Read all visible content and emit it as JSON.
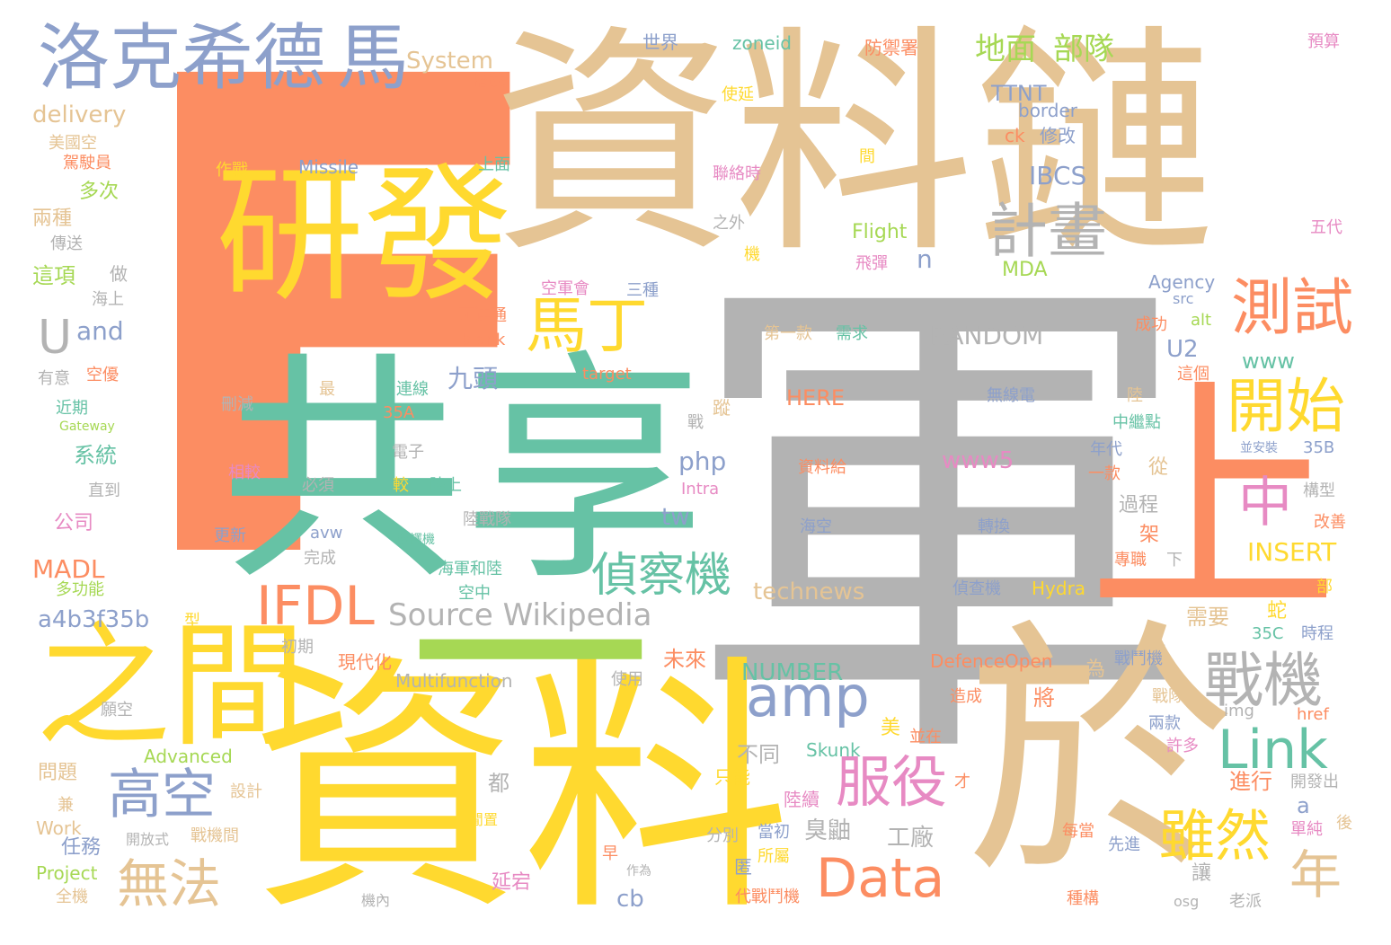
{
  "palette": {
    "orange": "#fc8d62",
    "yellow": "#ffd92f",
    "tan": "#e5c494",
    "gray": "#b3b3b3",
    "teal": "#66c2a5",
    "blue": "#8da0cb",
    "pink": "#e78ac3",
    "green": "#a6d854"
  },
  "words": [
    {
      "text": "F",
      "color": "#fc8d62"
    },
    {
      "text": "資料鏈",
      "color": "#e5c494"
    },
    {
      "text": "軍",
      "color": "#b3b3b3"
    },
    {
      "text": "共享",
      "color": "#66c2a5"
    },
    {
      "text": "資料",
      "color": "#ffd92f"
    },
    {
      "text": "於",
      "color": "#e5c494"
    },
    {
      "text": "研發",
      "color": "#ffd92f"
    },
    {
      "text": "之間",
      "color": "#ffd92f"
    },
    {
      "text": "上",
      "color": "#fc8d62"
    },
    {
      "text": "洛克希德",
      "color": "#8da0cb"
    },
    {
      "text": "馬",
      "color": "#8da0cb"
    },
    {
      "text": "一",
      "color": "#a6d854"
    },
    {
      "text": "測試",
      "color": "#fc8d62"
    },
    {
      "text": "計畫",
      "color": "#b3b3b3"
    },
    {
      "text": "開始",
      "color": "#ffd92f"
    },
    {
      "text": "馬丁",
      "color": "#ffd92f"
    },
    {
      "text": "中",
      "color": "#e78ac3"
    },
    {
      "text": "戰機",
      "color": "#b3b3b3"
    },
    {
      "text": "IFDL",
      "color": "#fc8d62"
    },
    {
      "text": "amp",
      "color": "#8da0cb"
    },
    {
      "text": "Link",
      "color": "#66c2a5"
    },
    {
      "text": "服役",
      "color": "#e78ac3"
    },
    {
      "text": "Data",
      "color": "#fc8d62"
    },
    {
      "text": "雖然",
      "color": "#ffd92f"
    },
    {
      "text": "偵察機",
      "color": "#66c2a5"
    },
    {
      "text": "高空",
      "color": "#8da0cb"
    },
    {
      "text": "無法",
      "color": "#e5c494"
    },
    {
      "text": "年",
      "color": "#e5c494"
    },
    {
      "text": "地面",
      "color": "#a6d854"
    },
    {
      "text": "部隊",
      "color": "#a6d854"
    },
    {
      "text": "U",
      "color": "#b3b3b3"
    },
    {
      "text": "Source Wikipedia",
      "color": "#b3b3b3"
    },
    {
      "text": "System",
      "color": "#e5c494"
    },
    {
      "text": "delivery",
      "color": "#e5c494"
    },
    {
      "text": "and",
      "color": "#8da0cb"
    },
    {
      "text": "IBCS",
      "color": "#8da0cb"
    },
    {
      "text": "TTNT",
      "color": "#8da0cb"
    },
    {
      "text": "RANDOM",
      "color": "#b3b3b3"
    },
    {
      "text": "NUMBER",
      "color": "#66c2a5"
    },
    {
      "text": "INSERT",
      "color": "#ffd92f"
    },
    {
      "text": "technews",
      "color": "#e5c494"
    },
    {
      "text": "a4b3f35b",
      "color": "#8da0cb"
    },
    {
      "text": "MADL",
      "color": "#fc8d62"
    },
    {
      "text": "Missile",
      "color": "#8da0cb"
    },
    {
      "text": "Flight",
      "color": "#a6d854"
    },
    {
      "text": "MDA",
      "color": "#a6d854"
    },
    {
      "text": "Agency",
      "color": "#8da0cb"
    },
    {
      "text": "zoneid",
      "color": "#66c2a5"
    },
    {
      "text": "border",
      "color": "#8da0cb"
    },
    {
      "text": "php",
      "color": "#8da0cb"
    },
    {
      "text": "www5",
      "color": "#e78ac3"
    },
    {
      "text": "www",
      "color": "#66c2a5"
    },
    {
      "text": "HERE",
      "color": "#fc8d62"
    },
    {
      "text": "Multifunction",
      "color": "#b3b3b3"
    },
    {
      "text": "Advanced",
      "color": "#a6d854"
    },
    {
      "text": "Skunk",
      "color": "#66c2a5"
    },
    {
      "text": "DefenceOpen",
      "color": "#fc8d62"
    },
    {
      "text": "Hydra",
      "color": "#ffd92f"
    },
    {
      "text": "Work",
      "color": "#e5c494"
    },
    {
      "text": "Project",
      "color": "#a6d854"
    },
    {
      "text": "Intra",
      "color": "#e78ac3"
    },
    {
      "text": "target",
      "color": "#fc8d62"
    },
    {
      "text": "blank",
      "color": "#fc8d62"
    },
    {
      "text": "Gateway",
      "color": "#a6d854"
    },
    {
      "text": "九頭",
      "color": "#8da0cb"
    },
    {
      "text": "U2",
      "color": "#8da0cb"
    },
    {
      "text": "tw",
      "color": "#8da0cb"
    },
    {
      "text": "cb",
      "color": "#8da0cb"
    },
    {
      "text": "n",
      "color": "#8da0cb"
    },
    {
      "text": "a",
      "color": "#8da0cb"
    },
    {
      "text": "ck",
      "color": "#fc8d62"
    },
    {
      "text": "src",
      "color": "#8da0cb"
    },
    {
      "text": "alt",
      "color": "#a6d854"
    },
    {
      "text": "img",
      "color": "#b3b3b3"
    },
    {
      "text": "href",
      "color": "#fc8d62"
    },
    {
      "text": "avw",
      "color": "#8da0cb"
    },
    {
      "text": "osg",
      "color": "#b3b3b3"
    },
    {
      "text": "35A",
      "color": "#fc8d62"
    },
    {
      "text": "35B",
      "color": "#8da0cb"
    },
    {
      "text": "35C",
      "color": "#66c2a5"
    },
    {
      "text": "世界",
      "color": "#8da0cb"
    },
    {
      "text": "防禦署",
      "color": "#fc8d62"
    },
    {
      "text": "預算",
      "color": "#e78ac3"
    },
    {
      "text": "搭載",
      "color": "#fc8d62"
    },
    {
      "text": "使延",
      "color": "#ffd92f"
    },
    {
      "text": "美國空",
      "color": "#e5c494"
    },
    {
      "text": "修改",
      "color": "#8da0cb"
    },
    {
      "text": "駕駛員",
      "color": "#fc8d62"
    },
    {
      "text": "上面",
      "color": "#66c2a5"
    },
    {
      "text": "聯絡時",
      "color": "#e78ac3"
    },
    {
      "text": "間",
      "color": "#ffd92f"
    },
    {
      "text": "作戰",
      "color": "#ffd92f"
    },
    {
      "text": "多次",
      "color": "#a6d854"
    },
    {
      "text": "兩種",
      "color": "#e5c494"
    },
    {
      "text": "之外",
      "color": "#b3b3b3"
    },
    {
      "text": "五代",
      "color": "#e78ac3"
    },
    {
      "text": "傳送",
      "color": "#b3b3b3"
    },
    {
      "text": "機",
      "color": "#ffd92f"
    },
    {
      "text": "飛彈",
      "color": "#e78ac3"
    },
    {
      "text": "這項",
      "color": "#a6d854"
    },
    {
      "text": "做",
      "color": "#b3b3b3"
    },
    {
      "text": "海上",
      "color": "#b3b3b3"
    },
    {
      "text": "空軍會",
      "color": "#e78ac3"
    },
    {
      "text": "三種",
      "color": "#8da0cb"
    },
    {
      "text": "可連通",
      "color": "#fc8d62"
    },
    {
      "text": "第一款",
      "color": "#e5c494"
    },
    {
      "text": "需求",
      "color": "#66c2a5"
    },
    {
      "text": "成功",
      "color": "#fc8d62"
    },
    {
      "text": "有意",
      "color": "#b3b3b3"
    },
    {
      "text": "空優",
      "color": "#fc8d62"
    },
    {
      "text": "最",
      "color": "#e5c494"
    },
    {
      "text": "連線",
      "color": "#66c2a5"
    },
    {
      "text": "這個",
      "color": "#fc8d62"
    },
    {
      "text": "陸",
      "color": "#e5c494"
    },
    {
      "text": "近期",
      "color": "#66c2a5"
    },
    {
      "text": "刪減",
      "color": "#b3b3b3"
    },
    {
      "text": "無線電",
      "color": "#8da0cb"
    },
    {
      "text": "中繼點",
      "color": "#66c2a5"
    },
    {
      "text": "戰",
      "color": "#b3b3b3"
    },
    {
      "text": "蹤",
      "color": "#e5c494"
    },
    {
      "text": "系統",
      "color": "#66c2a5"
    },
    {
      "text": "電子",
      "color": "#b3b3b3"
    },
    {
      "text": "年代",
      "color": "#8da0cb"
    },
    {
      "text": "並安裝",
      "color": "#8da0cb"
    },
    {
      "text": "相較",
      "color": "#e78ac3"
    },
    {
      "text": "必須",
      "color": "#b3b3b3"
    },
    {
      "text": "較",
      "color": "#ffd92f"
    },
    {
      "text": "陸上",
      "color": "#66c2a5"
    },
    {
      "text": "資料給",
      "color": "#fc8d62"
    },
    {
      "text": "一款",
      "color": "#fc8d62"
    },
    {
      "text": "從",
      "color": "#e5c494"
    },
    {
      "text": "構型",
      "color": "#b3b3b3"
    },
    {
      "text": "直到",
      "color": "#b3b3b3"
    },
    {
      "text": "陸戰隊",
      "color": "#b3b3b3"
    },
    {
      "text": "過程",
      "color": "#b3b3b3"
    },
    {
      "text": "改善",
      "color": "#fc8d62"
    },
    {
      "text": "公司",
      "color": "#e78ac3"
    },
    {
      "text": "更新",
      "color": "#8da0cb"
    },
    {
      "text": "翻譯機",
      "color": "#66c2a5"
    },
    {
      "text": "海空",
      "color": "#8da0cb"
    },
    {
      "text": "轉換",
      "color": "#8da0cb"
    },
    {
      "text": "架",
      "color": "#fc8d62"
    },
    {
      "text": "完成",
      "color": "#b3b3b3"
    },
    {
      "text": "海軍和陸",
      "color": "#66c2a5"
    },
    {
      "text": "專職",
      "color": "#fc8d62"
    },
    {
      "text": "下",
      "color": "#b3b3b3"
    },
    {
      "text": "多功能",
      "color": "#a6d854"
    },
    {
      "text": "空中",
      "color": "#66c2a5"
    },
    {
      "text": "偵查機",
      "color": "#8da0cb"
    },
    {
      "text": "部",
      "color": "#ffd92f"
    },
    {
      "text": "型",
      "color": "#ffd92f"
    },
    {
      "text": "需要",
      "color": "#e5c494"
    },
    {
      "text": "蛇",
      "color": "#ffd92f"
    },
    {
      "text": "時程",
      "color": "#8da0cb"
    },
    {
      "text": "初期",
      "color": "#b3b3b3"
    },
    {
      "text": "現代化",
      "color": "#fc8d62"
    },
    {
      "text": "使用",
      "color": "#b3b3b3"
    },
    {
      "text": "未來",
      "color": "#fc8d62"
    },
    {
      "text": "戰鬥機",
      "color": "#8da0cb"
    },
    {
      "text": "為",
      "color": "#e5c494"
    },
    {
      "text": "願空",
      "color": "#b3b3b3"
    },
    {
      "text": "將",
      "color": "#fc8d62"
    },
    {
      "text": "造成",
      "color": "#fc8d62"
    },
    {
      "text": "戰隊",
      "color": "#e5c494"
    },
    {
      "text": "美",
      "color": "#ffd92f"
    },
    {
      "text": "並在",
      "color": "#fc8d62"
    },
    {
      "text": "兩款",
      "color": "#8da0cb"
    },
    {
      "text": "許多",
      "color": "#e78ac3"
    },
    {
      "text": "不同",
      "color": "#b3b3b3"
    },
    {
      "text": "問題",
      "color": "#e5c494"
    },
    {
      "text": "只能",
      "color": "#ffd92f"
    },
    {
      "text": "都",
      "color": "#b3b3b3"
    },
    {
      "text": "陸續",
      "color": "#e78ac3"
    },
    {
      "text": "才",
      "color": "#fc8d62"
    },
    {
      "text": "進行",
      "color": "#fc8d62"
    },
    {
      "text": "開發出",
      "color": "#b3b3b3"
    },
    {
      "text": "設計",
      "color": "#e5c494"
    },
    {
      "text": "兼",
      "color": "#e5c494"
    },
    {
      "text": "開放式",
      "color": "#b3b3b3"
    },
    {
      "text": "戰機間",
      "color": "#e5c494"
    },
    {
      "text": "閒置",
      "color": "#ffd92f"
    },
    {
      "text": "分別",
      "color": "#b3b3b3"
    },
    {
      "text": "當初",
      "color": "#8da0cb"
    },
    {
      "text": "臭鼬",
      "color": "#b3b3b3"
    },
    {
      "text": "工廠",
      "color": "#b3b3b3"
    },
    {
      "text": "每當",
      "color": "#fc8d62"
    },
    {
      "text": "先進",
      "color": "#8da0cb"
    },
    {
      "text": "後",
      "color": "#e5c494"
    },
    {
      "text": "單純",
      "color": "#e78ac3"
    },
    {
      "text": "任務",
      "color": "#8da0cb"
    },
    {
      "text": "早",
      "color": "#fc8d62"
    },
    {
      "text": "匿",
      "color": "#8da0cb"
    },
    {
      "text": "所屬",
      "color": "#ffd92f"
    },
    {
      "text": "讓",
      "color": "#b3b3b3"
    },
    {
      "text": "全機",
      "color": "#e5c494"
    },
    {
      "text": "延宕",
      "color": "#e78ac3"
    },
    {
      "text": "作為",
      "color": "#b3b3b3"
    },
    {
      "text": "代戰鬥機",
      "color": "#fc8d62"
    },
    {
      "text": "種構",
      "color": "#fc8d62"
    },
    {
      "text": "老派",
      "color": "#b3b3b3"
    },
    {
      "text": "機內",
      "color": "#b3b3b3"
    }
  ]
}
